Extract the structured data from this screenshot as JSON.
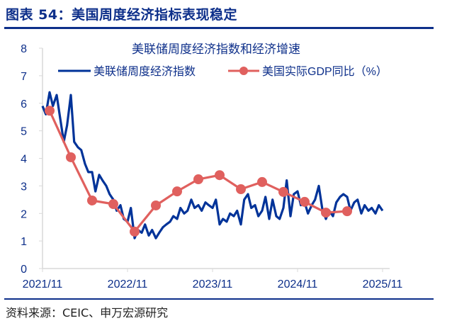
{
  "figure_title": "图表 54：美国周度经济指标表现稳定",
  "source": "资料来源：CEIC、申万宏源研究",
  "colors": {
    "header": "#0d2f8a",
    "series_blue": "#003399",
    "series_red": "#e0605e"
  },
  "chart_data": {
    "type": "line",
    "title": "美联储周度经济指数和经济增速",
    "xlabel": "",
    "ylabel": "",
    "ylim": [
      0,
      8
    ],
    "yticks": [
      "0",
      "1",
      "2",
      "3",
      "4",
      "5",
      "6",
      "7",
      "8"
    ],
    "xticks": [
      "2021/11",
      "2022/11",
      "2023/11",
      "2024/11",
      "2025/11"
    ],
    "grid": false,
    "legend": "top",
    "series": [
      {
        "name": "美联储周度经济指数",
        "color": "#003399",
        "dates": [
          "2021-11-01",
          "2021-11-15",
          "2021-12-01",
          "2021-12-15",
          "2022-01-01",
          "2022-01-15",
          "2022-02-01",
          "2022-02-15",
          "2022-03-01",
          "2022-03-15",
          "2022-04-01",
          "2022-04-15",
          "2022-05-01",
          "2022-05-15",
          "2022-06-01",
          "2022-06-15",
          "2022-07-01",
          "2022-07-15",
          "2022-08-01",
          "2022-08-15",
          "2022-09-01",
          "2022-09-15",
          "2022-10-01",
          "2022-10-15",
          "2022-11-01",
          "2022-11-15",
          "2022-12-01",
          "2022-12-15",
          "2023-01-01",
          "2023-01-15",
          "2023-02-01",
          "2023-02-15",
          "2023-03-01",
          "2023-03-15",
          "2023-04-01",
          "2023-04-15",
          "2023-05-01",
          "2023-05-15",
          "2023-06-01",
          "2023-06-15",
          "2023-07-01",
          "2023-07-15",
          "2023-08-01",
          "2023-08-15",
          "2023-09-01",
          "2023-09-15",
          "2023-10-01",
          "2023-10-15",
          "2023-11-01",
          "2023-11-15",
          "2023-12-01",
          "2023-12-15",
          "2024-01-01",
          "2024-01-15",
          "2024-02-01",
          "2024-02-15",
          "2024-03-01",
          "2024-03-15",
          "2024-04-01",
          "2024-04-15",
          "2024-05-01",
          "2024-05-15",
          "2024-06-01",
          "2024-06-15",
          "2024-07-01",
          "2024-07-15",
          "2024-08-01",
          "2024-08-15",
          "2024-09-01",
          "2024-09-15",
          "2024-10-01",
          "2024-10-15",
          "2024-11-01",
          "2024-11-15",
          "2024-12-01",
          "2024-12-15",
          "2025-01-01",
          "2025-01-15",
          "2025-02-01",
          "2025-02-15",
          "2025-03-01",
          "2025-03-15",
          "2025-04-01",
          "2025-04-15",
          "2025-05-01",
          "2025-05-15",
          "2025-06-01",
          "2025-06-15",
          "2025-07-01",
          "2025-07-15",
          "2025-08-01",
          "2025-08-15",
          "2025-09-01",
          "2025-09-15",
          "2025-10-01",
          "2025-10-15",
          "2025-11-01"
        ],
        "values": [
          5.9,
          5.6,
          6.4,
          5.9,
          6.3,
          5.5,
          4.6,
          5.2,
          6.3,
          4.6,
          4.4,
          4.3,
          3.8,
          3.5,
          3.5,
          2.8,
          3.4,
          3.2,
          3.0,
          2.7,
          2.5,
          2.1,
          2.3,
          1.8,
          1.7,
          2.2,
          1.1,
          1.4,
          1.3,
          1.6,
          1.2,
          1.4,
          1.1,
          1.3,
          1.5,
          1.6,
          1.7,
          1.9,
          1.8,
          2.2,
          2.0,
          2.1,
          2.5,
          2.2,
          2.3,
          2.1,
          2.4,
          2.3,
          2.2,
          2.5,
          1.6,
          1.8,
          1.7,
          2.0,
          1.9,
          2.1,
          1.6,
          2.5,
          2.7,
          2.2,
          2.3,
          1.9,
          2.1,
          2.6,
          1.8,
          2.5,
          1.9,
          1.8,
          2.2,
          3.2,
          1.9,
          2.7,
          2.8,
          2.3,
          2.4,
          2.0,
          2.3,
          2.5,
          3.0,
          2.2,
          1.8,
          2.1,
          1.9,
          2.4,
          2.6,
          2.7,
          2.6,
          2.1,
          2.4,
          2.5,
          2.0,
          2.3,
          2.1,
          2.2,
          2.0,
          2.3,
          2.1
        ]
      },
      {
        "name": "美国实际GDP同比（%）",
        "color": "#e0605e",
        "dates": [
          "2021Q4",
          "2022Q1",
          "2022Q2",
          "2022Q3",
          "2022Q4",
          "2023Q1",
          "2023Q2",
          "2023Q3",
          "2023Q4",
          "2024Q1",
          "2024Q2",
          "2024Q3",
          "2024Q4",
          "2025Q1",
          "2025Q2"
        ],
        "values": [
          5.73,
          4.04,
          2.47,
          2.34,
          1.34,
          2.29,
          2.8,
          3.24,
          3.39,
          2.88,
          3.14,
          2.78,
          2.42,
          2.03,
          2.08
        ]
      }
    ]
  }
}
